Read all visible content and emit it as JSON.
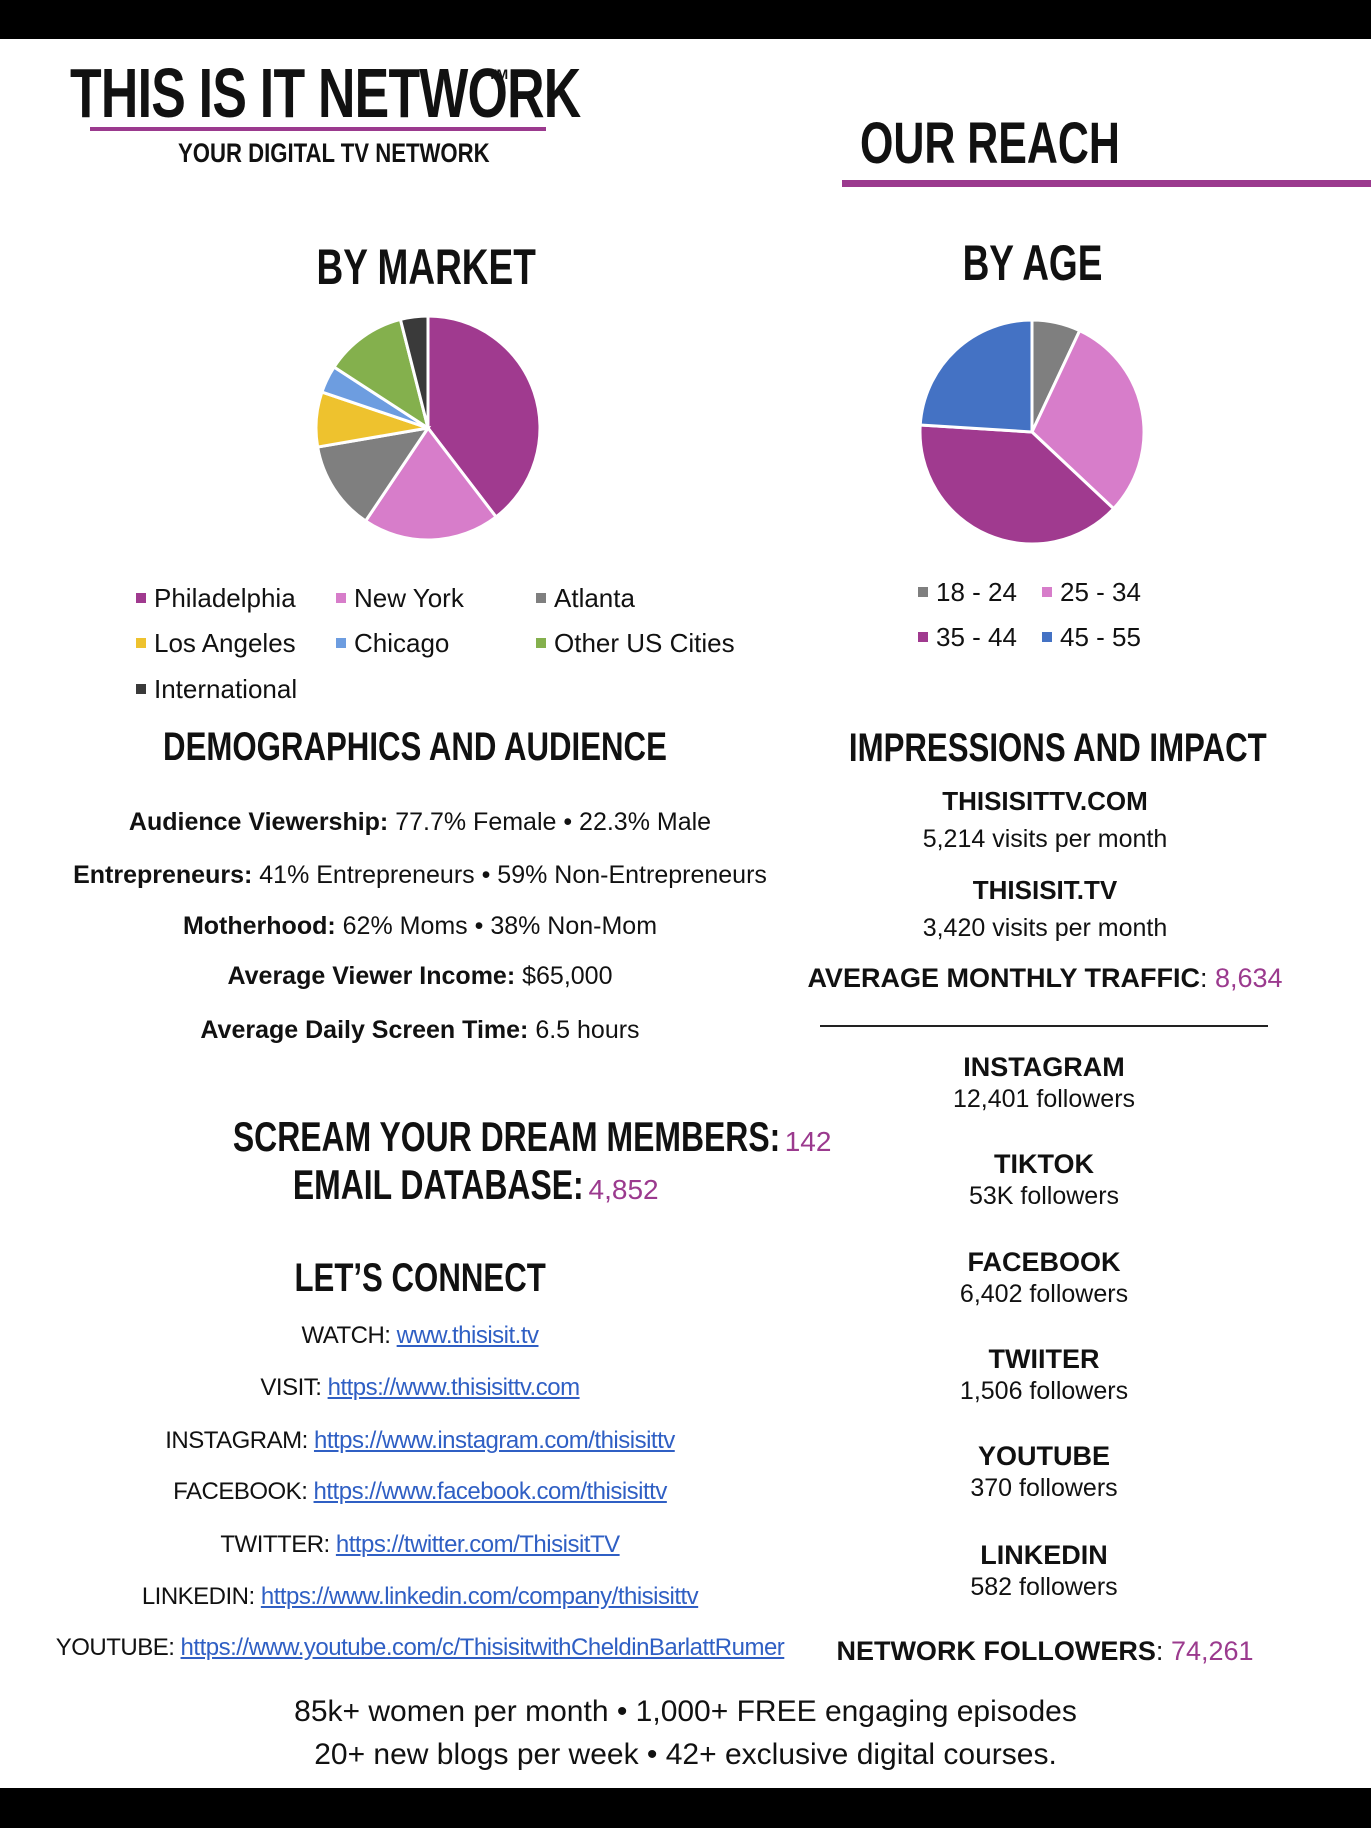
{
  "brand": {
    "title": "THIS IS IT NETWORK",
    "tm": "TM",
    "subtitle": "YOUR DIGITAL TV NETWORK"
  },
  "reach_title": "OUR REACH",
  "colors": {
    "accent": "#9b3a8e",
    "link": "#2f5fc4"
  },
  "by_market": {
    "title": "BY MARKET",
    "legend": [
      {
        "label": "Philadelphia",
        "color": "#a03a8f"
      },
      {
        "label": "New York",
        "color": "#d77dca"
      },
      {
        "label": "Atlanta",
        "color": "#7f7f7f"
      },
      {
        "label": "Los Angeles",
        "color": "#eec22e"
      },
      {
        "label": "Chicago",
        "color": "#6d9de0"
      },
      {
        "label": "Other US Cities",
        "color": "#84b04d"
      },
      {
        "label": "International",
        "color": "#3a3a3a"
      }
    ]
  },
  "by_age": {
    "title": "BY AGE",
    "legend": [
      {
        "label": "18 - 24",
        "color": "#7f7f7f"
      },
      {
        "label": "25 - 34",
        "color": "#d77dca"
      },
      {
        "label": "35 - 44",
        "color": "#a03a8f"
      },
      {
        "label": "45 - 55",
        "color": "#4472c4"
      }
    ]
  },
  "chart_data": [
    {
      "type": "pie",
      "title": "BY MARKET",
      "categories": [
        "Philadelphia",
        "New York",
        "Atlanta",
        "Los Angeles",
        "Chicago",
        "Other US Cities",
        "International"
      ],
      "values": [
        40,
        20,
        13,
        8,
        4,
        12,
        4
      ],
      "colors": [
        "#a03a8f",
        "#d77dca",
        "#7f7f7f",
        "#eec22e",
        "#6d9de0",
        "#84b04d",
        "#3a3a3a"
      ],
      "legend": "bottom"
    },
    {
      "type": "pie",
      "title": "BY AGE",
      "categories": [
        "18 - 24",
        "25 - 34",
        "35 - 44",
        "45 - 55"
      ],
      "values": [
        7,
        30,
        39,
        24
      ],
      "colors": [
        "#7f7f7f",
        "#d77dca",
        "#a03a8f",
        "#4472c4"
      ],
      "legend": "bottom"
    }
  ],
  "demographics": {
    "title": "DEMOGRAPHICS AND AUDIENCE",
    "rows": [
      {
        "label": "Audience Viewership:",
        "value": " 77.7% Female • 22.3% Male"
      },
      {
        "label": "Entrepreneurs:",
        "value": " 41% Entrepreneurs • 59% Non-Entrepreneurs"
      },
      {
        "label": "Motherhood:",
        "value": " 62% Moms • 38% Non-Mom"
      },
      {
        "label": "Average Viewer Income:",
        "value": " $65,000"
      },
      {
        "label": "Average Daily Screen Time:",
        "value": " 6.5 hours"
      }
    ]
  },
  "members": [
    {
      "label": "SCREAM YOUR DREAM MEMBERS:",
      "value": "142"
    },
    {
      "label": "EMAIL DATABASE:",
      "value": "4,852"
    }
  ],
  "connect": {
    "title": "LET’S CONNECT",
    "links": [
      {
        "label": "WATCH: ",
        "url": "www.thisisit.tv"
      },
      {
        "label": "VISIT: ",
        "url": "https://www.thisisittv.com"
      },
      {
        "label": "INSTAGRAM: ",
        "url": "https://www.instagram.com/thisisittv"
      },
      {
        "label": "FACEBOOK: ",
        "url": "https://www.facebook.com/thisisittv"
      },
      {
        "label": "TWITTER: ",
        "url": "https://twitter.com/ThisisitTV"
      },
      {
        "label": "LINKEDIN: ",
        "url": "https://www.linkedin.com/company/thisisittv"
      },
      {
        "label": "YOUTUBE: ",
        "url": "https://www.youtube.com/c/ThisisitwithCheldinBarlattRumer"
      }
    ]
  },
  "impressions": {
    "title": "IMPRESSIONS AND IMPACT",
    "sites": [
      {
        "name": "THISISITTV.COM",
        "visits": "5,214 visits per month"
      },
      {
        "name": "THISISIT.TV",
        "visits": "3,420 visits per month"
      }
    ],
    "traffic_label": "AVERAGE MONTHLY TRAFFIC",
    "traffic_sep": ": ",
    "traffic_value": "8,634",
    "socials": [
      {
        "name": "INSTAGRAM",
        "followers": "12,401 followers"
      },
      {
        "name": "TIKTOK",
        "followers": "53K followers"
      },
      {
        "name": "FACEBOOK",
        "followers": "6,402 followers"
      },
      {
        "name": "TWIITER",
        "followers": "1,506  followers"
      },
      {
        "name": "YOUTUBE",
        "followers": "370 followers"
      },
      {
        "name": "LINKEDIN",
        "followers": "582 followers"
      }
    ],
    "network_label": "NETWORK FOLLOWERS",
    "network_sep": ": ",
    "network_value": "74,261"
  },
  "footer": {
    "line1": "85k+ women per month • 1,000+ FREE engaging episodes",
    "line2": "20+ new blogs per week • 42+ exclusive digital courses."
  }
}
